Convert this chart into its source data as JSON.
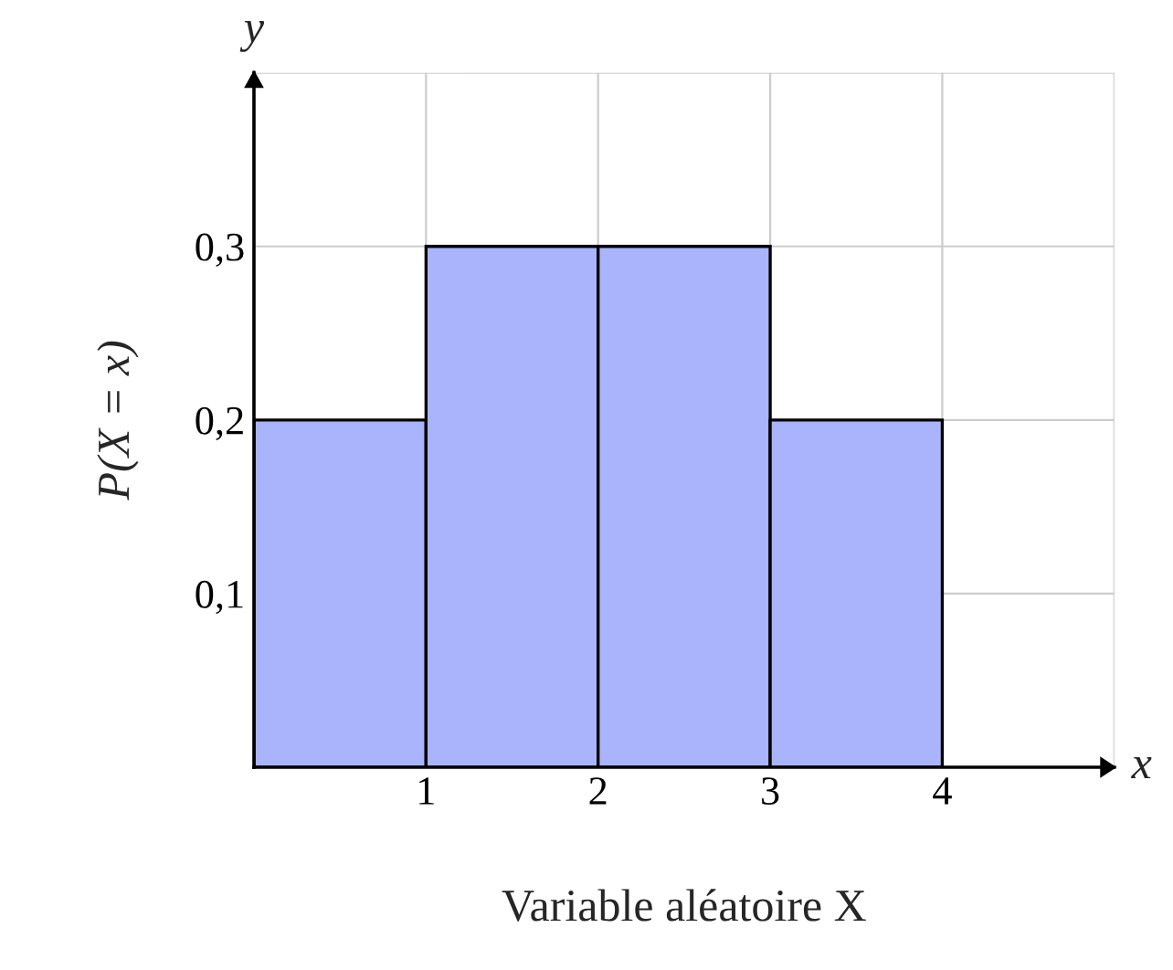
{
  "chart_data": {
    "type": "histogram",
    "xlabel": "Variable aléatoire X",
    "ylabel": "P(X = x)",
    "bins": [
      0,
      1,
      2,
      3,
      4
    ],
    "values": [
      0.2,
      0.3,
      0.3,
      0.2
    ],
    "color": "#aab4fc",
    "xlim": [
      0,
      5
    ],
    "ylim": [
      0,
      0.4
    ],
    "xticks": [
      1,
      2,
      3,
      4,
      {
        "value": 5,
        "label": null
      }
    ],
    "yticks": [
      {
        "value": 0.1,
        "label": "0,1"
      },
      {
        "value": 0.2,
        "label": "0,2"
      },
      {
        "value": 0.3,
        "label": "0,3"
      },
      {
        "value": 0.4,
        "label": null
      }
    ],
    "annotations": [
      "x",
      "y"
    ],
    "grid": true,
    "legend": false
  }
}
